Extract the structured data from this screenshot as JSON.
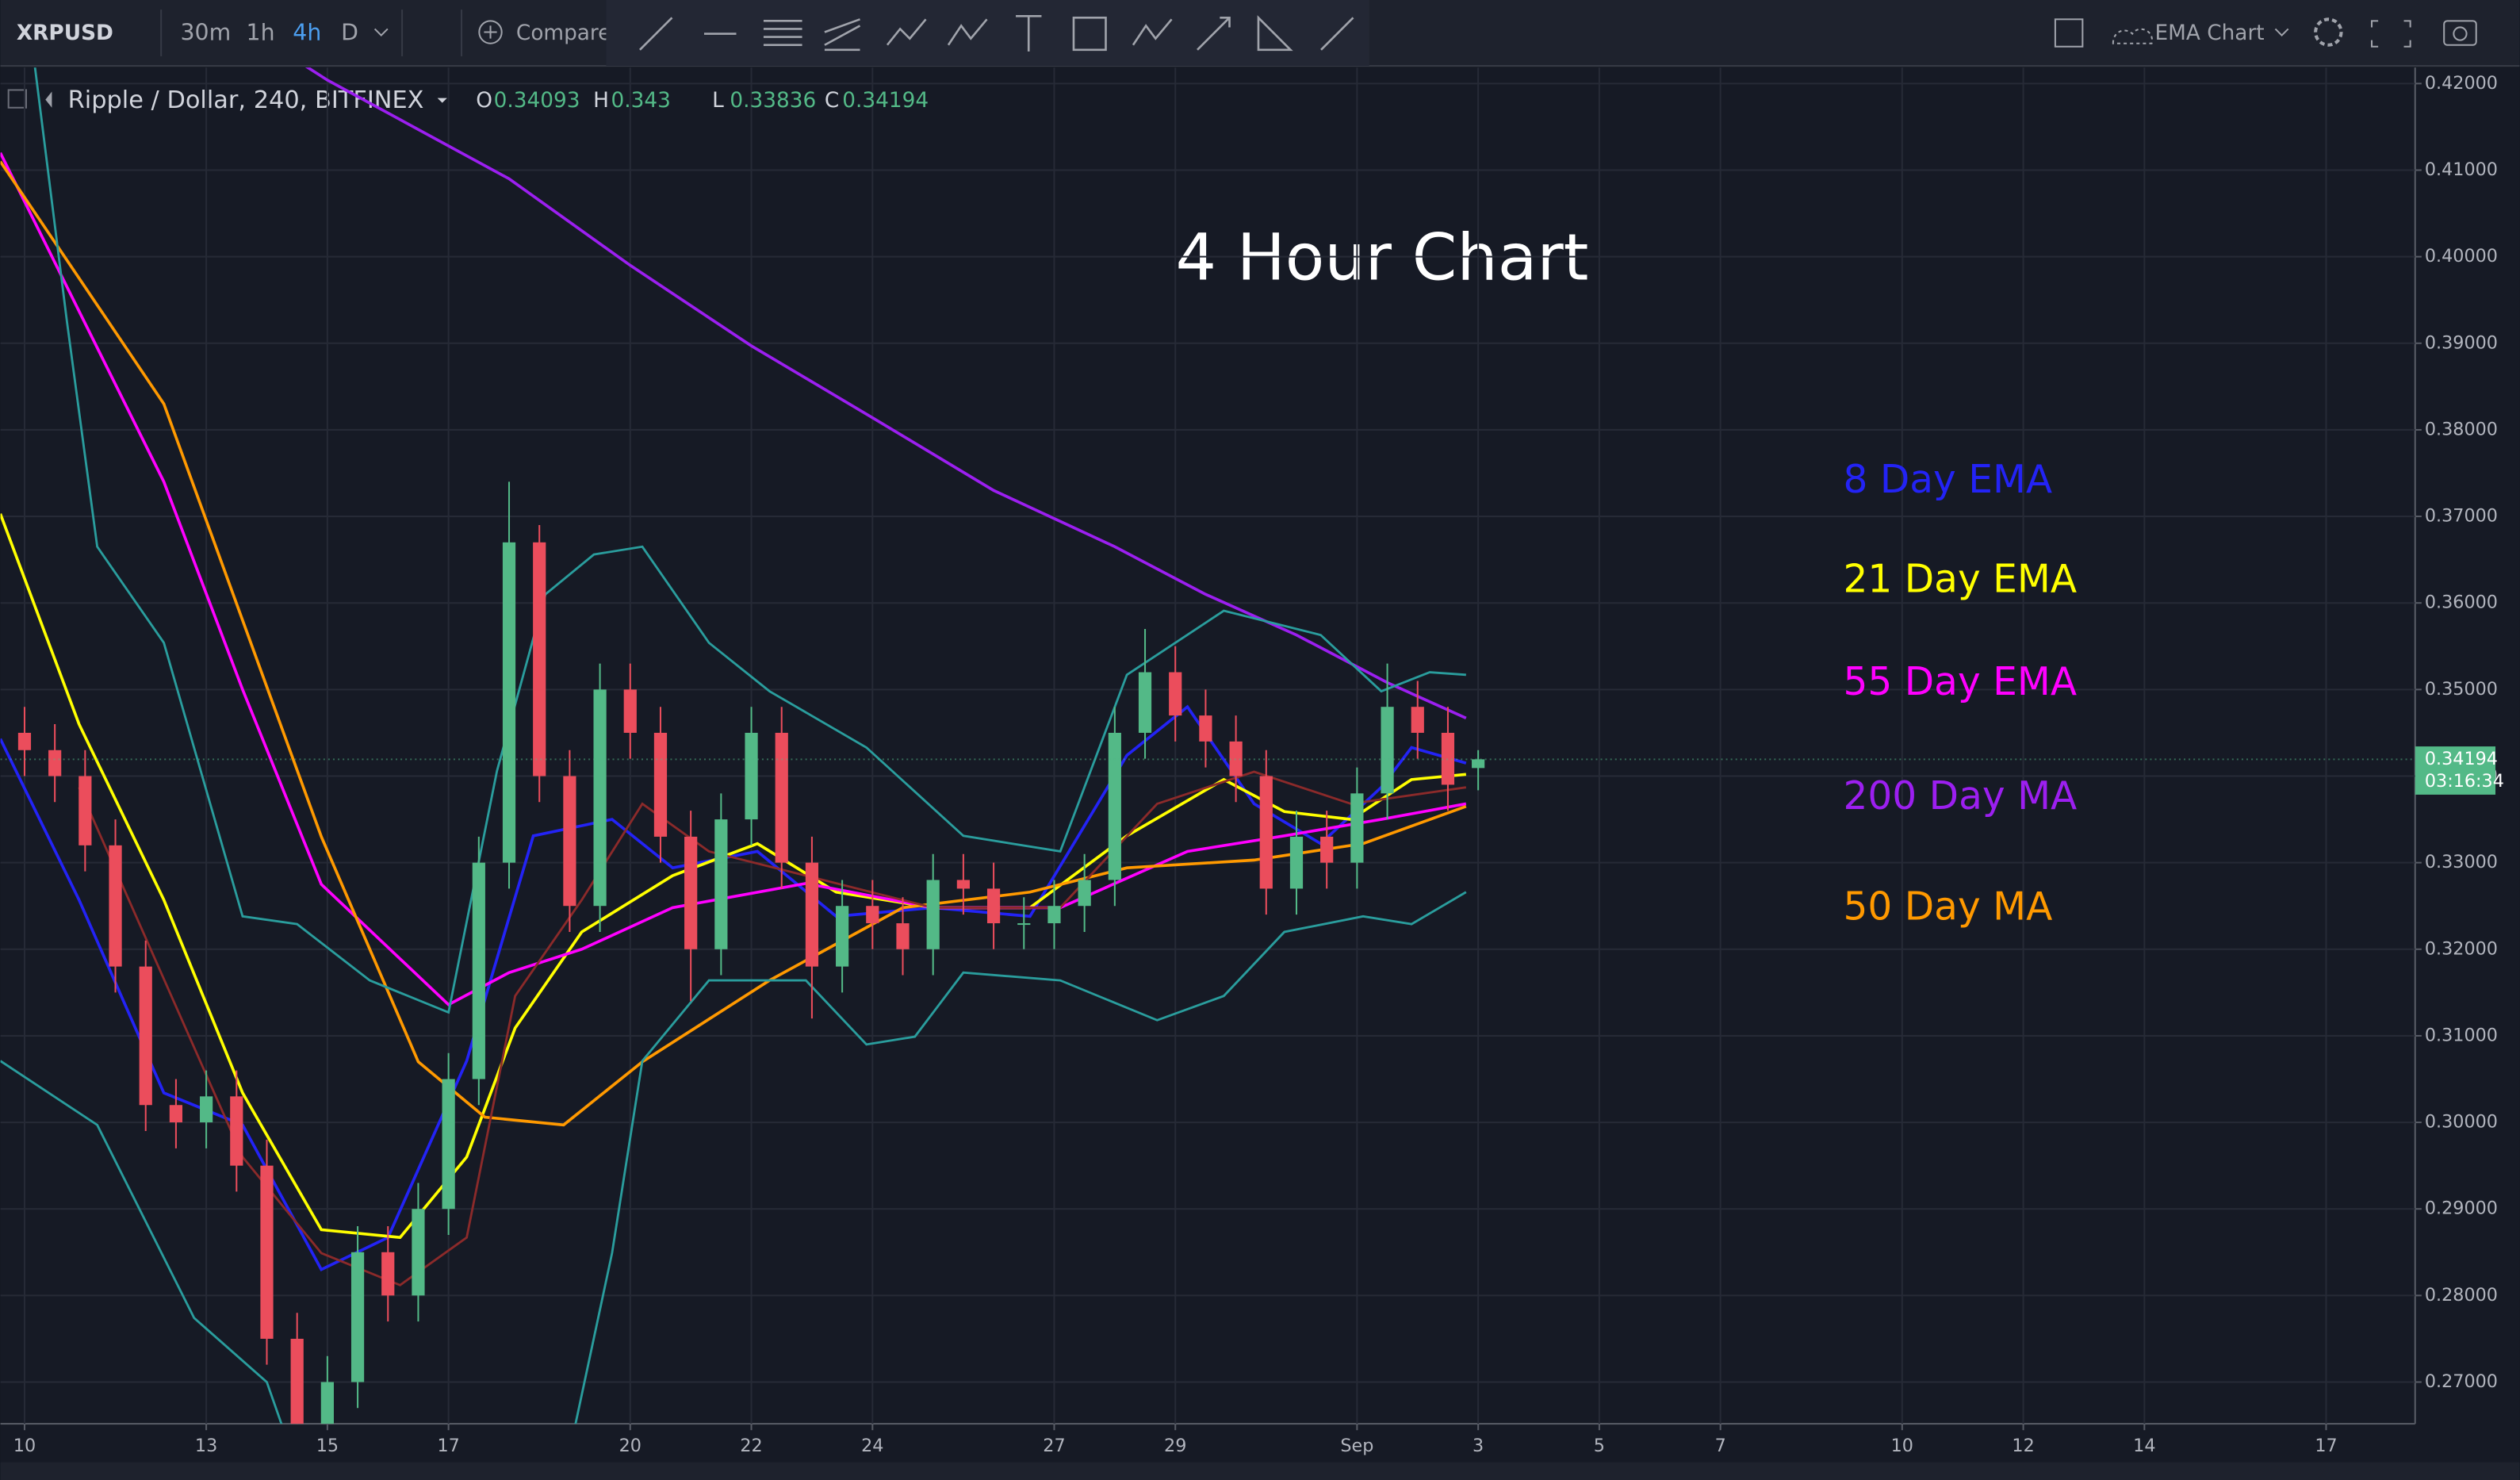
{
  "chart_data": {
    "type": "candlestick",
    "toolbar": {
      "symbol": "XRPUSD",
      "intervals": [
        "30m",
        "1h",
        "4h",
        "D"
      ],
      "compare": "Compare",
      "chart_name": "EMA Chart"
    },
    "header": {
      "symbol": "Ripple / Dollar, 240, BITFINEX",
      "items": [
        {
          "key": "O",
          "value": 0.34093
        },
        {
          "key": "H",
          "value": 0.343
        },
        {
          "key": "L",
          "value": 0.33836
        },
        {
          "key": "C",
          "value": 0.34194
        }
      ]
    },
    "title": "4 Hour Chart",
    "last_price": 0.34194,
    "countdown": "03:16:34",
    "up_color": "#53b987",
    "down_color": "#eb4d5c",
    "grid": true,
    "xlim": [
      -0.4,
      39.5
    ],
    "ylim": [
      0.2652,
      0.4215
    ],
    "xticks": [
      {
        "value": 0,
        "label": "10"
      },
      {
        "value": 3,
        "label": "13"
      },
      {
        "value": 5,
        "label": "15"
      },
      {
        "value": 7,
        "label": "17"
      },
      {
        "value": 10,
        "label": "20"
      },
      {
        "value": 12,
        "label": "22"
      },
      {
        "value": 14,
        "label": "24"
      },
      {
        "value": 17,
        "label": "27"
      },
      {
        "value": 19,
        "label": "29"
      },
      {
        "value": 22,
        "label": "Sep"
      },
      {
        "value": 24,
        "label": "3"
      },
      {
        "value": 26,
        "label": "5"
      },
      {
        "value": 28,
        "label": "7"
      },
      {
        "value": 31,
        "label": "10"
      },
      {
        "value": 33,
        "label": "12"
      },
      {
        "value": 35,
        "label": "14"
      },
      {
        "value": 38,
        "label": "17"
      }
    ],
    "yticks": [
      {
        "value": 0.27,
        "label": "0.27000"
      },
      {
        "value": 0.28,
        "label": "0.28000"
      },
      {
        "value": 0.29,
        "label": "0.29000"
      },
      {
        "value": 0.3,
        "label": "0.30000"
      },
      {
        "value": 0.31,
        "label": "0.31000"
      },
      {
        "value": 0.32,
        "label": "0.32000"
      },
      {
        "value": 0.33,
        "label": "0.33000"
      },
      {
        "value": 0.34,
        "label": "0.34000"
      },
      {
        "value": 0.35,
        "label": "0.35000"
      },
      {
        "value": 0.36,
        "label": "0.36000"
      },
      {
        "value": 0.37,
        "label": "0.37000"
      },
      {
        "value": 0.38,
        "label": "0.38000"
      },
      {
        "value": 0.39,
        "label": "0.39000"
      },
      {
        "value": 0.4,
        "label": "0.40000"
      },
      {
        "value": 0.41,
        "label": "0.41000"
      },
      {
        "value": 0.42,
        "label": "0.42000"
      }
    ],
    "candles": {
      "x": [
        0,
        0.5,
        1,
        1.5,
        2,
        2.5,
        3,
        3.5,
        4,
        4.5,
        5,
        5.5,
        6,
        6.5,
        7,
        7.5,
        8,
        8.5,
        9,
        9.5,
        10,
        10.5,
        11,
        11.5,
        12,
        12.5,
        13,
        13.5,
        14,
        14.5,
        15,
        15.5,
        16,
        16.5,
        17,
        17.5,
        18,
        18.5,
        19,
        19.5,
        20,
        20.5,
        21,
        21.5,
        22,
        22.5,
        23,
        23.5,
        24
      ],
      "open": [
        0.345,
        0.343,
        0.34,
        0.332,
        0.318,
        0.302,
        0.3,
        0.303,
        0.295,
        0.275,
        0.265,
        0.27,
        0.285,
        0.28,
        0.29,
        0.305,
        0.33,
        0.367,
        0.34,
        0.325,
        0.35,
        0.345,
        0.333,
        0.32,
        0.335,
        0.345,
        0.33,
        0.318,
        0.325,
        0.323,
        0.32,
        0.328,
        0.327,
        0.323,
        0.323,
        0.325,
        0.328,
        0.345,
        0.352,
        0.347,
        0.344,
        0.34,
        0.327,
        0.333,
        0.33,
        0.338,
        0.348,
        0.345,
        0.34093
      ],
      "high": [
        0.348,
        0.346,
        0.343,
        0.335,
        0.321,
        0.305,
        0.306,
        0.306,
        0.298,
        0.278,
        0.273,
        0.288,
        0.288,
        0.293,
        0.308,
        0.333,
        0.374,
        0.369,
        0.343,
        0.353,
        0.353,
        0.348,
        0.336,
        0.338,
        0.348,
        0.348,
        0.333,
        0.328,
        0.328,
        0.326,
        0.331,
        0.331,
        0.33,
        0.326,
        0.328,
        0.331,
        0.348,
        0.357,
        0.355,
        0.35,
        0.347,
        0.343,
        0.336,
        0.336,
        0.341,
        0.353,
        0.351,
        0.348,
        0.343
      ],
      "low": [
        0.34,
        0.337,
        0.329,
        0.315,
        0.299,
        0.297,
        0.297,
        0.292,
        0.272,
        0.262,
        0.262,
        0.267,
        0.277,
        0.277,
        0.287,
        0.302,
        0.327,
        0.337,
        0.322,
        0.322,
        0.342,
        0.33,
        0.314,
        0.317,
        0.332,
        0.327,
        0.312,
        0.315,
        0.32,
        0.317,
        0.317,
        0.324,
        0.32,
        0.32,
        0.32,
        0.322,
        0.325,
        0.342,
        0.344,
        0.341,
        0.337,
        0.324,
        0.324,
        0.327,
        0.327,
        0.335,
        0.342,
        0.336,
        0.33836
      ],
      "close": [
        0.343,
        0.34,
        0.332,
        0.318,
        0.302,
        0.3,
        0.303,
        0.295,
        0.275,
        0.265,
        0.27,
        0.285,
        0.28,
        0.29,
        0.305,
        0.33,
        0.367,
        0.34,
        0.325,
        0.35,
        0.345,
        0.333,
        0.32,
        0.335,
        0.345,
        0.33,
        0.318,
        0.325,
        0.323,
        0.32,
        0.328,
        0.327,
        0.323,
        0.323,
        0.325,
        0.328,
        0.345,
        0.352,
        0.347,
        0.344,
        0.34,
        0.327,
        0.333,
        0.33,
        0.338,
        0.348,
        0.345,
        0.339,
        0.34194
      ]
    },
    "series": [
      {
        "name": "8 Day EMA",
        "color": "#2323f5",
        "x": [
          -0.4,
          0.9,
          2.3,
          3.6,
          4.9,
          6.0,
          7.3,
          8.4,
          9.7,
          10.7,
          12.1,
          13.4,
          15,
          16.6,
          18.2,
          19.2,
          20.3,
          21.4,
          22.4,
          22.9,
          23.8
        ],
        "values": [
          0.3443,
          0.3257,
          0.3034,
          0.2997,
          0.283,
          0.2867,
          0.3071,
          0.3331,
          0.335,
          0.3294,
          0.3313,
          0.3238,
          0.3248,
          0.3238,
          0.3424,
          0.348,
          0.3368,
          0.3322,
          0.3387,
          0.3433,
          0.3415
        ]
      },
      {
        "name": "21 Day EMA",
        "color": "#ffff00",
        "x": [
          -0.4,
          0.9,
          2.3,
          3.6,
          4.9,
          6.2,
          7.3,
          8.1,
          9.2,
          10.7,
          12.1,
          13.4,
          15,
          16.6,
          18.2,
          19.8,
          20.8,
          21.9,
          22.9,
          23.8
        ],
        "values": [
          0.3703,
          0.346,
          0.3257,
          0.3034,
          0.2876,
          0.2867,
          0.296,
          0.3109,
          0.322,
          0.3285,
          0.3322,
          0.3266,
          0.3248,
          0.3248,
          0.3331,
          0.3396,
          0.3359,
          0.335,
          0.3396,
          0.3402
        ]
      },
      {
        "name": "55 Day EMA",
        "color": "#ff00ff",
        "x": [
          -0.4,
          2.3,
          3.6,
          4.9,
          7.0,
          8.0,
          9.2,
          10.7,
          12.9,
          15,
          17.1,
          19.2,
          20.8,
          22.4,
          23.8
        ],
        "values": [
          0.412,
          0.374,
          0.35,
          0.3275,
          0.3136,
          0.3173,
          0.32,
          0.3248,
          0.3276,
          0.3248,
          0.3248,
          0.3313,
          0.3331,
          0.335,
          0.3368
        ]
      },
      {
        "name": "200 Day MA",
        "color": "#9c1ff0",
        "x": [
          4.6,
          5.0,
          8.0,
          10,
          12,
          14,
          16,
          18,
          19.5,
          21,
          22.5,
          23.8
        ],
        "values": [
          0.4222,
          0.4204,
          0.409,
          0.399,
          0.3897,
          0.3814,
          0.373,
          0.3665,
          0.361,
          0.3563,
          0.3508,
          0.3467
        ]
      },
      {
        "name": "50 Day MA",
        "color": "#ff9900",
        "x": [
          -0.4,
          2.3,
          4.9,
          6.5,
          7.6,
          8.9,
          10.2,
          12.3,
          14.5,
          16.6,
          18.2,
          20.3,
          22.1,
          23.8
        ],
        "values": [
          0.411,
          0.383,
          0.333,
          0.307,
          0.3006,
          0.2997,
          0.307,
          0.3164,
          0.3248,
          0.3266,
          0.3294,
          0.3303,
          0.3322,
          0.3365
        ]
      },
      {
        "color": "#8b2a2a",
        "x": [
          0.9,
          3.6,
          4.9,
          6.2,
          7.3,
          8.1,
          9.2,
          10.2,
          11.3,
          12.9,
          15,
          17.1,
          18.7,
          20.3,
          21.9,
          23.8
        ],
        "values": [
          0.3387,
          0.296,
          0.2849,
          0.2812,
          0.2867,
          0.3146,
          0.3257,
          0.3368,
          0.3313,
          0.3285,
          0.3248,
          0.3248,
          0.3368,
          0.3405,
          0.3368,
          0.3387
        ]
      },
      {
        "color": "#2a9d9d",
        "x": [
          0.1,
          0.7,
          1.2,
          2.3,
          3.6,
          4.5,
          5.7,
          7.0,
          7.8,
          8.6,
          9.4,
          10.2,
          11.3,
          12.3,
          13.9,
          15.5,
          17.1,
          18.2,
          19.8,
          21.4,
          22.4,
          23.2,
          23.8
        ],
        "values": [
          0.4259,
          0.3925,
          0.3665,
          0.3554,
          0.3238,
          0.3229,
          0.3164,
          0.3127,
          0.3406,
          0.361,
          0.3656,
          0.3665,
          0.3554,
          0.3498,
          0.3433,
          0.3331,
          0.3313,
          0.3517,
          0.3591,
          0.3563,
          0.3498,
          0.352,
          0.3517
        ]
      },
      {
        "color": "#2a9d9d",
        "x": [
          -0.4,
          1.2,
          2.8,
          4.0,
          4.4,
          9.0,
          9.7,
          10.2,
          11.3,
          12.9,
          13.9,
          14.7,
          15.5,
          17.1,
          18.7,
          19.8,
          20.8,
          22.1,
          22.9,
          23.8
        ],
        "values": [
          0.3071,
          0.2997,
          0.2774,
          0.27,
          0.262,
          0.262,
          0.2849,
          0.3071,
          0.3164,
          0.3164,
          0.309,
          0.3099,
          0.3173,
          0.3164,
          0.3118,
          0.3146,
          0.322,
          0.3238,
          0.3229,
          0.3266
        ]
      }
    ]
  }
}
